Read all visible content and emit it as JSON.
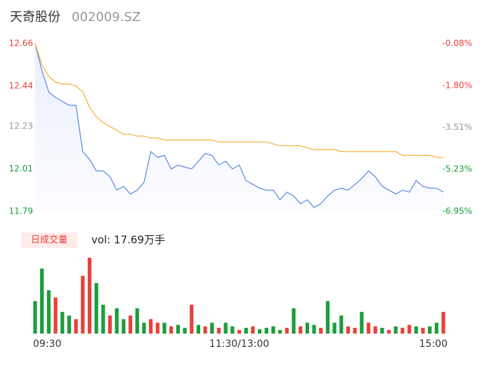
{
  "header": {
    "name": "天奇股份",
    "code": "002009.SZ"
  },
  "chart_data": [
    {
      "type": "line",
      "x": [
        0,
        4,
        8,
        12,
        16,
        20,
        24,
        28,
        32,
        36,
        40,
        44,
        48,
        52,
        56,
        60,
        64,
        68,
        72,
        76,
        80,
        84,
        88,
        92,
        96,
        100,
        104,
        108,
        112,
        116,
        120,
        124,
        128,
        132,
        136,
        140,
        144,
        148,
        152,
        156,
        160,
        164,
        168,
        172,
        176,
        180,
        184,
        188,
        192,
        196,
        200,
        204,
        208,
        212,
        216,
        220,
        224,
        228,
        232,
        236,
        240
      ],
      "xlim": [
        0,
        240
      ],
      "ylim": [
        11.79,
        12.66
      ],
      "yticks": [
        11.79,
        12.01,
        12.23,
        12.44,
        12.66
      ],
      "ytick_colors": [
        "#1a9e3a",
        "#1a9e3a",
        "#999999",
        "#e8413b",
        "#e8413b"
      ],
      "y2lim": [
        -6.95,
        -0.08
      ],
      "y2ticks": [
        {
          "value": -6.95,
          "label": "-6.95%"
        },
        {
          "value": -5.23,
          "label": "-5.23%"
        },
        {
          "value": -3.51,
          "label": "-3.51%"
        },
        {
          "value": -1.8,
          "label": "-1.80%"
        },
        {
          "value": -0.08,
          "label": "-0.08%"
        }
      ],
      "series": [
        {
          "color": "#4a7fe0",
          "values": [
            12.66,
            12.52,
            12.41,
            12.38,
            12.36,
            12.34,
            12.34,
            12.1,
            12.06,
            12.0,
            12.0,
            11.97,
            11.9,
            11.92,
            11.88,
            11.9,
            11.94,
            12.1,
            12.07,
            12.08,
            12.01,
            12.03,
            12.02,
            12.01,
            12.05,
            12.09,
            12.08,
            12.03,
            12.05,
            12.01,
            12.03,
            11.95,
            11.93,
            11.91,
            11.9,
            11.9,
            11.85,
            11.89,
            11.87,
            11.83,
            11.85,
            11.81,
            11.83,
            11.87,
            11.9,
            11.91,
            11.9,
            11.93,
            11.96,
            12.0,
            11.97,
            11.92,
            11.9,
            11.88,
            11.9,
            11.89,
            11.95,
            11.92,
            11.91,
            11.91,
            11.89
          ]
        },
        {
          "color": "#f5a623",
          "values": [
            12.66,
            12.55,
            12.49,
            12.46,
            12.45,
            12.45,
            12.44,
            12.41,
            12.33,
            12.28,
            12.25,
            12.23,
            12.21,
            12.19,
            12.19,
            12.18,
            12.18,
            12.17,
            12.17,
            12.16,
            12.16,
            12.16,
            12.16,
            12.16,
            12.16,
            12.16,
            12.16,
            12.15,
            12.15,
            12.15,
            12.15,
            12.15,
            12.15,
            12.15,
            12.15,
            12.14,
            12.13,
            12.13,
            12.13,
            12.13,
            12.12,
            12.11,
            12.11,
            12.11,
            12.11,
            12.1,
            12.1,
            12.1,
            12.1,
            12.1,
            12.1,
            12.1,
            12.1,
            12.1,
            12.08,
            12.08,
            12.08,
            12.08,
            12.08,
            12.07,
            12.07
          ]
        }
      ]
    },
    {
      "type": "bar",
      "title": "日成交量",
      "subtitle": "vol: 17.69万手",
      "x": [
        0,
        4,
        8,
        12,
        16,
        20,
        24,
        28,
        32,
        36,
        40,
        44,
        48,
        52,
        56,
        60,
        64,
        68,
        72,
        76,
        80,
        84,
        88,
        92,
        96,
        100,
        104,
        108,
        112,
        116,
        120,
        124,
        128,
        132,
        136,
        140,
        144,
        148,
        152,
        156,
        160,
        164,
        168,
        172,
        176,
        180,
        184,
        188,
        192,
        196,
        200,
        204,
        208,
        212,
        216,
        220,
        224,
        228,
        232,
        236,
        240
      ],
      "xlim": [
        0,
        240
      ],
      "xticks": [
        {
          "value": 0,
          "label": "09:30"
        },
        {
          "value": 120,
          "label": "11:30/13:00"
        },
        {
          "value": 240,
          "label": "15:00"
        }
      ],
      "values": [
        45,
        90,
        60,
        50,
        30,
        25,
        20,
        80,
        105,
        70,
        40,
        25,
        35,
        20,
        25,
        35,
        15,
        20,
        15,
        15,
        10,
        12,
        8,
        40,
        12,
        10,
        15,
        8,
        15,
        10,
        5,
        8,
        10,
        6,
        8,
        10,
        5,
        8,
        35,
        10,
        15,
        12,
        8,
        45,
        15,
        25,
        10,
        8,
        30,
        15,
        10,
        8,
        5,
        10,
        8,
        12,
        10,
        8,
        10,
        15,
        30
      ],
      "colors": [
        "#1a9e3a",
        "#1a9e3a",
        "#1a9e3a",
        "#e8413b",
        "#1a9e3a",
        "#1a9e3a",
        "#e8413b",
        "#e8413b",
        "#e8413b",
        "#1a9e3a",
        "#1a9e3a",
        "#e8413b",
        "#1a9e3a",
        "#1a9e3a",
        "#e8413b",
        "#1a9e3a",
        "#1a9e3a",
        "#e8413b",
        "#e8413b",
        "#1a9e3a",
        "#e8413b",
        "#1a9e3a",
        "#1a9e3a",
        "#e8413b",
        "#1a9e3a",
        "#e8413b",
        "#1a9e3a",
        "#e8413b",
        "#1a9e3a",
        "#1a9e3a",
        "#e8413b",
        "#1a9e3a",
        "#e8413b",
        "#1a9e3a",
        "#1a9e3a",
        "#1a9e3a",
        "#1a9e3a",
        "#e8413b",
        "#1a9e3a",
        "#e8413b",
        "#1a9e3a",
        "#1a9e3a",
        "#e8413b",
        "#1a9e3a",
        "#1a9e3a",
        "#1a9e3a",
        "#e8413b",
        "#e8413b",
        "#1a9e3a",
        "#e8413b",
        "#e8413b",
        "#1a9e3a",
        "#e8413b",
        "#1a9e3a",
        "#e8413b",
        "#e8413b",
        "#1a9e3a",
        "#e8413b",
        "#1a9e3a",
        "#1a9e3a",
        "#e8413b"
      ]
    }
  ]
}
